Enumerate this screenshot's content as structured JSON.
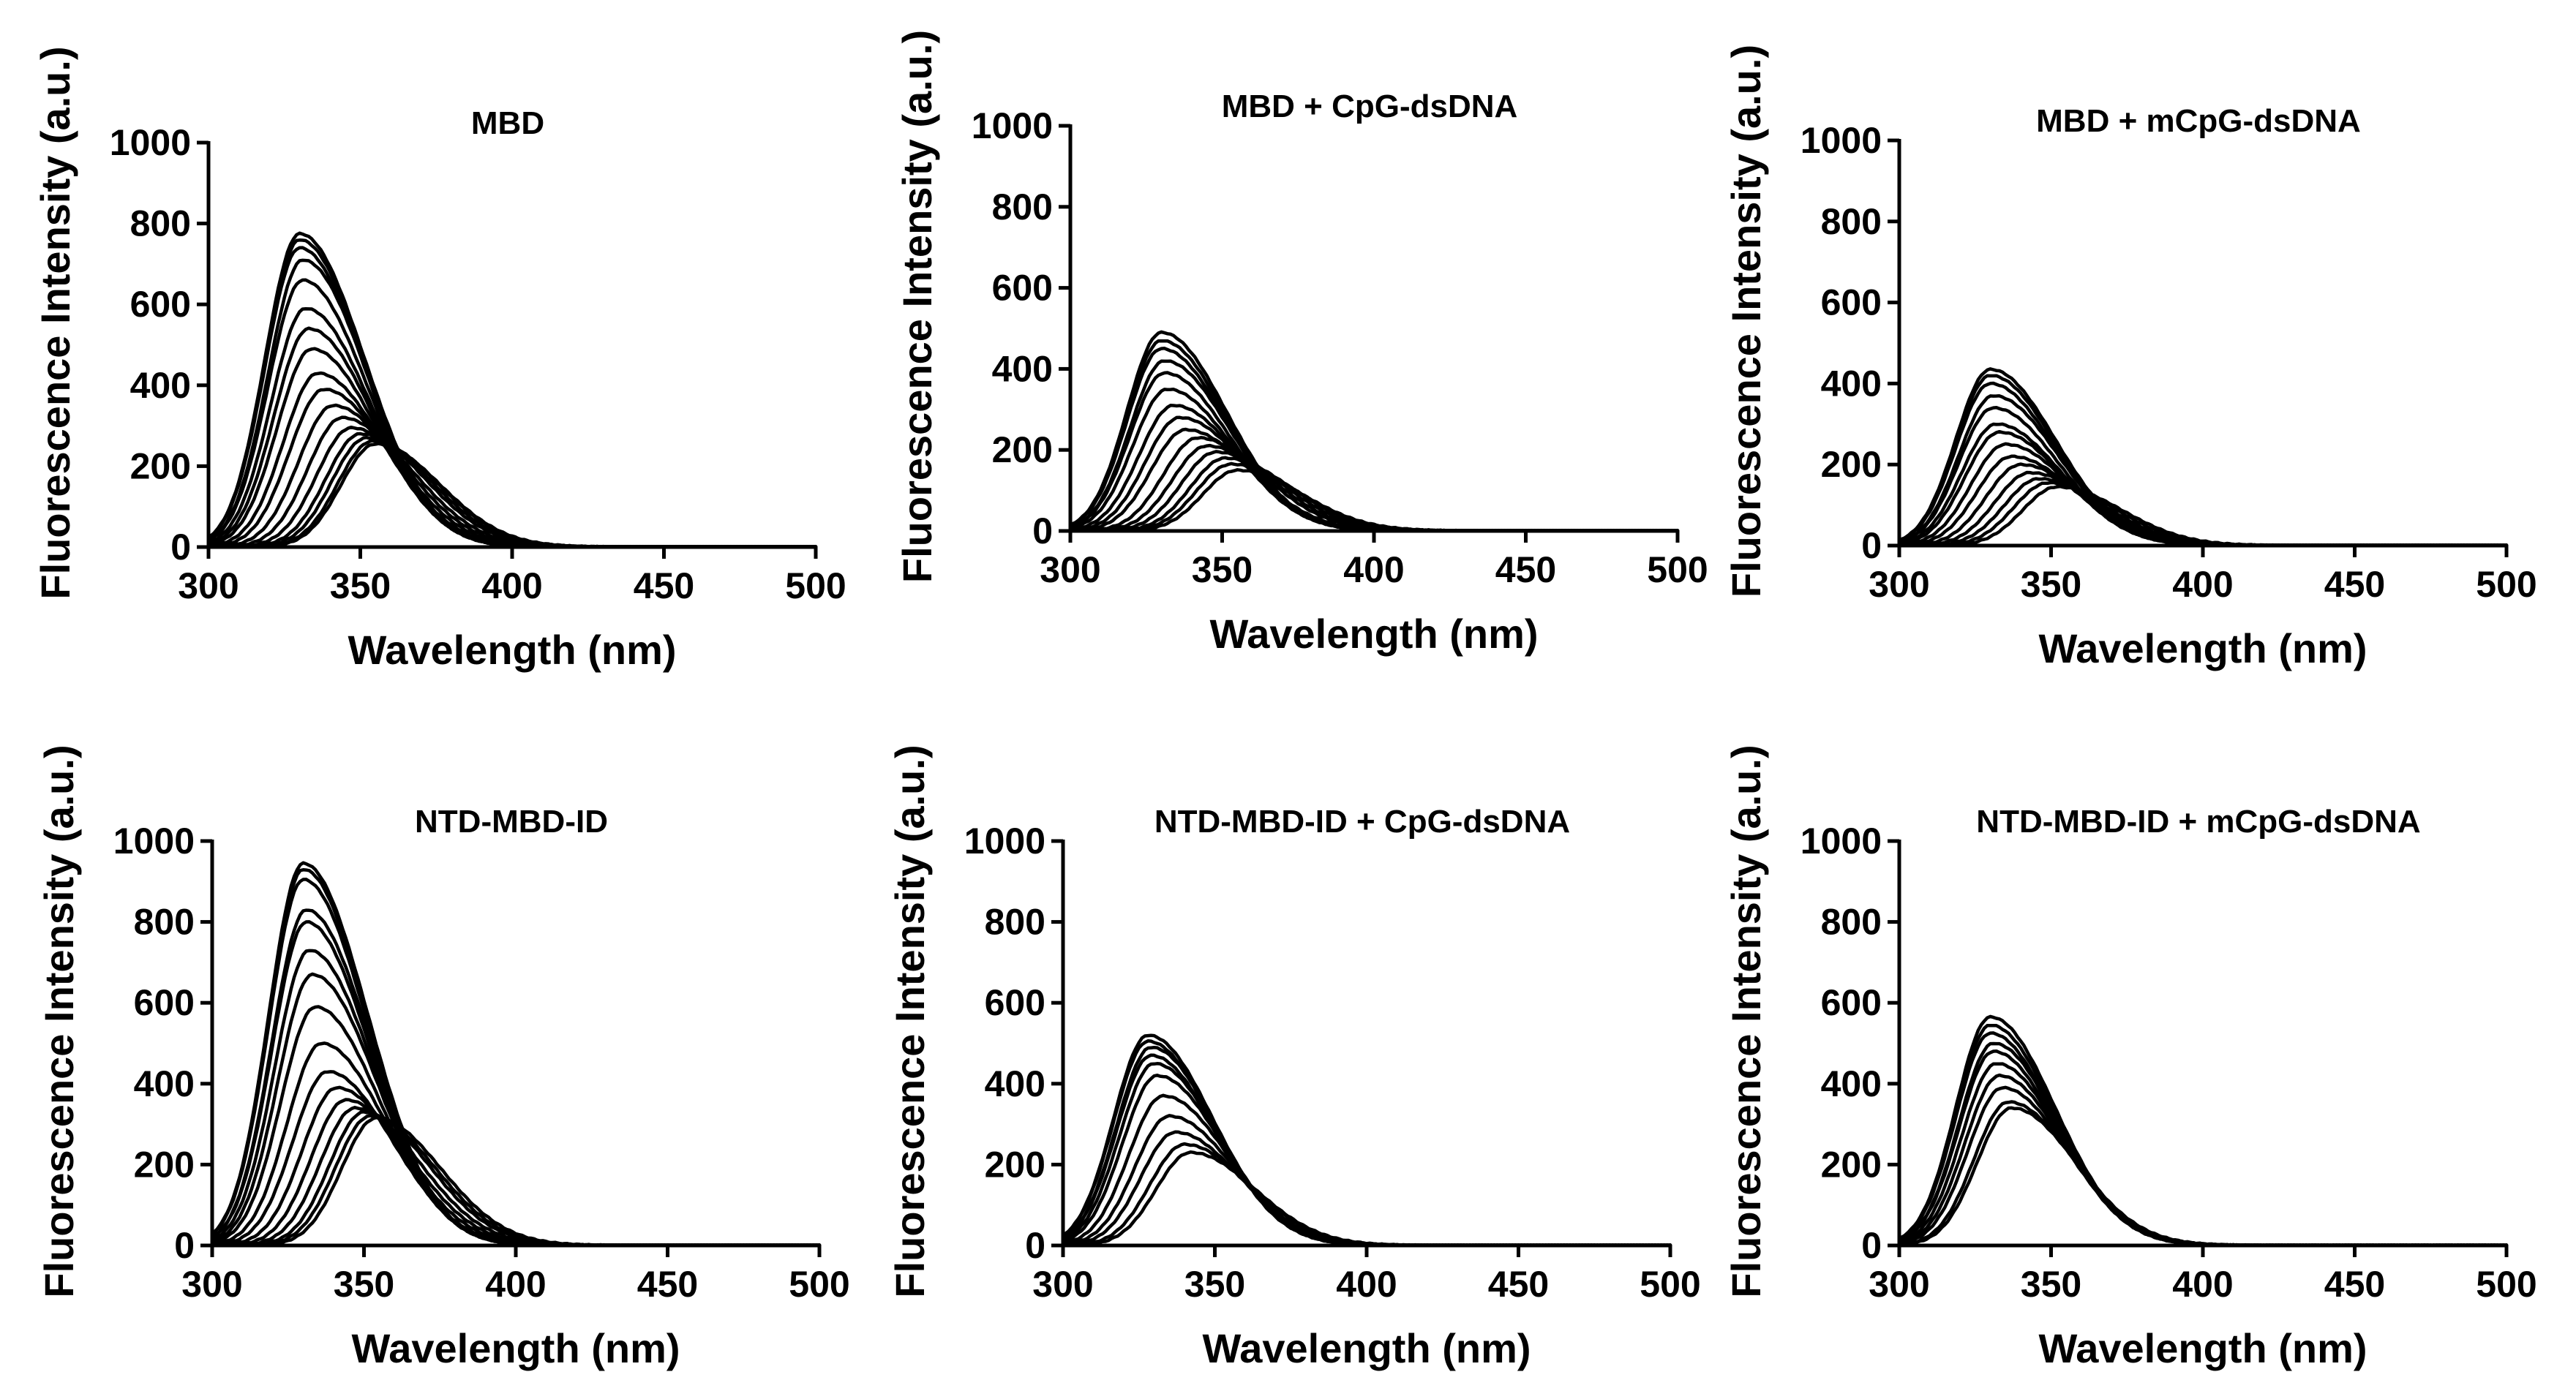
{
  "chart_data": [
    {
      "type": "line",
      "title": "MBD",
      "xlabel": "Wavelength (nm)",
      "ylabel": "Fluorescence Intensity (a.u.)",
      "xlim": [
        300,
        500
      ],
      "ylim": [
        0,
        1000
      ],
      "xticks": [
        "300",
        "350",
        "400",
        "450",
        "500"
      ],
      "yticks": [
        "0",
        "200",
        "400",
        "600",
        "800",
        "1000"
      ],
      "grid": false,
      "series_peaks": [
        {
          "peak_nm": 330,
          "peak_intensity": 775
        },
        {
          "peak_nm": 330,
          "peak_intensity": 760
        },
        {
          "peak_nm": 330,
          "peak_intensity": 740
        },
        {
          "peak_nm": 331,
          "peak_intensity": 710
        },
        {
          "peak_nm": 331,
          "peak_intensity": 660
        },
        {
          "peak_nm": 332,
          "peak_intensity": 590
        },
        {
          "peak_nm": 333,
          "peak_intensity": 540
        },
        {
          "peak_nm": 334,
          "peak_intensity": 490
        },
        {
          "peak_nm": 336,
          "peak_intensity": 430
        },
        {
          "peak_nm": 338,
          "peak_intensity": 390
        },
        {
          "peak_nm": 341,
          "peak_intensity": 350
        },
        {
          "peak_nm": 344,
          "peak_intensity": 320
        },
        {
          "peak_nm": 347,
          "peak_intensity": 295
        },
        {
          "peak_nm": 350,
          "peak_intensity": 280
        },
        {
          "peak_nm": 352,
          "peak_intensity": 270
        },
        {
          "peak_nm": 354,
          "peak_intensity": 262
        },
        {
          "peak_nm": 355,
          "peak_intensity": 255
        }
      ]
    },
    {
      "type": "line",
      "title": "MBD +  CpG-dsDNA",
      "xlabel": "Wavelength (nm)",
      "ylabel": "Fluorescence Intensity (a.u.)",
      "xlim": [
        300,
        500
      ],
      "ylim": [
        0,
        1000
      ],
      "xticks": [
        "300",
        "350",
        "400",
        "450",
        "500"
      ],
      "yticks": [
        "0",
        "200",
        "400",
        "600",
        "800",
        "1000"
      ],
      "grid": false,
      "series_peaks": [
        {
          "peak_nm": 330,
          "peak_intensity": 490
        },
        {
          "peak_nm": 330,
          "peak_intensity": 470
        },
        {
          "peak_nm": 330,
          "peak_intensity": 450
        },
        {
          "peak_nm": 331,
          "peak_intensity": 420
        },
        {
          "peak_nm": 331,
          "peak_intensity": 390
        },
        {
          "peak_nm": 332,
          "peak_intensity": 350
        },
        {
          "peak_nm": 334,
          "peak_intensity": 310
        },
        {
          "peak_nm": 336,
          "peak_intensity": 280
        },
        {
          "peak_nm": 338,
          "peak_intensity": 250
        },
        {
          "peak_nm": 342,
          "peak_intensity": 230
        },
        {
          "peak_nm": 345,
          "peak_intensity": 210
        },
        {
          "peak_nm": 348,
          "peak_intensity": 195
        },
        {
          "peak_nm": 351,
          "peak_intensity": 180
        },
        {
          "peak_nm": 353,
          "peak_intensity": 165
        },
        {
          "peak_nm": 355,
          "peak_intensity": 150
        }
      ]
    },
    {
      "type": "line",
      "title": "MBD + mCpG-dsDNA",
      "xlabel": "Wavelength (nm)",
      "ylabel": "Fluorescence Intensity (a.u.)",
      "xlim": [
        300,
        500
      ],
      "ylim": [
        0,
        1000
      ],
      "xticks": [
        "300",
        "350",
        "400",
        "450",
        "500"
      ],
      "yticks": [
        "0",
        "200",
        "400",
        "600",
        "800",
        "1000"
      ],
      "grid": false,
      "series_peaks": [
        {
          "peak_nm": 330,
          "peak_intensity": 435
        },
        {
          "peak_nm": 330,
          "peak_intensity": 420
        },
        {
          "peak_nm": 330,
          "peak_intensity": 400
        },
        {
          "peak_nm": 331,
          "peak_intensity": 370
        },
        {
          "peak_nm": 331,
          "peak_intensity": 340
        },
        {
          "peak_nm": 332,
          "peak_intensity": 300
        },
        {
          "peak_nm": 333,
          "peak_intensity": 280
        },
        {
          "peak_nm": 335,
          "peak_intensity": 250
        },
        {
          "peak_nm": 337,
          "peak_intensity": 220
        },
        {
          "peak_nm": 340,
          "peak_intensity": 200
        },
        {
          "peak_nm": 343,
          "peak_intensity": 180
        },
        {
          "peak_nm": 346,
          "peak_intensity": 165
        },
        {
          "peak_nm": 349,
          "peak_intensity": 155
        },
        {
          "peak_nm": 352,
          "peak_intensity": 145
        }
      ]
    },
    {
      "type": "line",
      "title": "NTD-MBD-ID",
      "xlabel": "Wavelength (nm)",
      "ylabel": "Fluorescence Intensity (a.u.)",
      "xlim": [
        300,
        500
      ],
      "ylim": [
        0,
        1000
      ],
      "xticks": [
        "300",
        "350",
        "400",
        "450",
        "500"
      ],
      "yticks": [
        "0",
        "200",
        "400",
        "600",
        "800",
        "1000"
      ],
      "grid": false,
      "series_peaks": [
        {
          "peak_nm": 330,
          "peak_intensity": 945
        },
        {
          "peak_nm": 330,
          "peak_intensity": 930
        },
        {
          "peak_nm": 330,
          "peak_intensity": 905
        },
        {
          "peak_nm": 331,
          "peak_intensity": 830
        },
        {
          "peak_nm": 331,
          "peak_intensity": 800
        },
        {
          "peak_nm": 332,
          "peak_intensity": 730
        },
        {
          "peak_nm": 333,
          "peak_intensity": 670
        },
        {
          "peak_nm": 334,
          "peak_intensity": 590
        },
        {
          "peak_nm": 336,
          "peak_intensity": 500
        },
        {
          "peak_nm": 338,
          "peak_intensity": 430
        },
        {
          "peak_nm": 341,
          "peak_intensity": 390
        },
        {
          "peak_nm": 344,
          "peak_intensity": 360
        },
        {
          "peak_nm": 347,
          "peak_intensity": 340
        },
        {
          "peak_nm": 350,
          "peak_intensity": 330
        },
        {
          "peak_nm": 352,
          "peak_intensity": 320
        },
        {
          "peak_nm": 354,
          "peak_intensity": 315
        }
      ]
    },
    {
      "type": "line",
      "title": "NTD-MBD-ID + CpG-dsDNA",
      "xlabel": "Wavelength (nm)",
      "ylabel": "Fluorescence Intensity (a.u.)",
      "xlim": [
        300,
        500
      ],
      "ylim": [
        0,
        1000
      ],
      "xticks": [
        "300",
        "350",
        "400",
        "450",
        "500"
      ],
      "yticks": [
        "0",
        "200",
        "400",
        "600",
        "800",
        "1000"
      ],
      "grid": false,
      "series_peaks": [
        {
          "peak_nm": 328,
          "peak_intensity": 520
        },
        {
          "peak_nm": 328,
          "peak_intensity": 505
        },
        {
          "peak_nm": 329,
          "peak_intensity": 490
        },
        {
          "peak_nm": 329,
          "peak_intensity": 470
        },
        {
          "peak_nm": 330,
          "peak_intensity": 450
        },
        {
          "peak_nm": 331,
          "peak_intensity": 420
        },
        {
          "peak_nm": 333,
          "peak_intensity": 370
        },
        {
          "peak_nm": 335,
          "peak_intensity": 320
        },
        {
          "peak_nm": 337,
          "peak_intensity": 280
        },
        {
          "peak_nm": 340,
          "peak_intensity": 250
        },
        {
          "peak_nm": 342,
          "peak_intensity": 230
        }
      ]
    },
    {
      "type": "line",
      "title": "NTD-MBD-ID + mCpG-dsDNA",
      "xlabel": "Wavelength (nm)",
      "ylabel": "Fluorescence Intensity (a.u.)",
      "xlim": [
        300,
        500
      ],
      "ylim": [
        0,
        1000
      ],
      "xticks": [
        "300",
        "350",
        "400",
        "450",
        "500"
      ],
      "yticks": [
        "0",
        "200",
        "400",
        "600",
        "800",
        "1000"
      ],
      "grid": false,
      "series_peaks": [
        {
          "peak_nm": 330,
          "peak_intensity": 565
        },
        {
          "peak_nm": 330,
          "peak_intensity": 545
        },
        {
          "peak_nm": 330,
          "peak_intensity": 525
        },
        {
          "peak_nm": 331,
          "peak_intensity": 500
        },
        {
          "peak_nm": 331,
          "peak_intensity": 480
        },
        {
          "peak_nm": 332,
          "peak_intensity": 450
        },
        {
          "peak_nm": 333,
          "peak_intensity": 420
        },
        {
          "peak_nm": 334,
          "peak_intensity": 390
        },
        {
          "peak_nm": 336,
          "peak_intensity": 355
        },
        {
          "peak_nm": 337,
          "peak_intensity": 340
        }
      ]
    }
  ]
}
